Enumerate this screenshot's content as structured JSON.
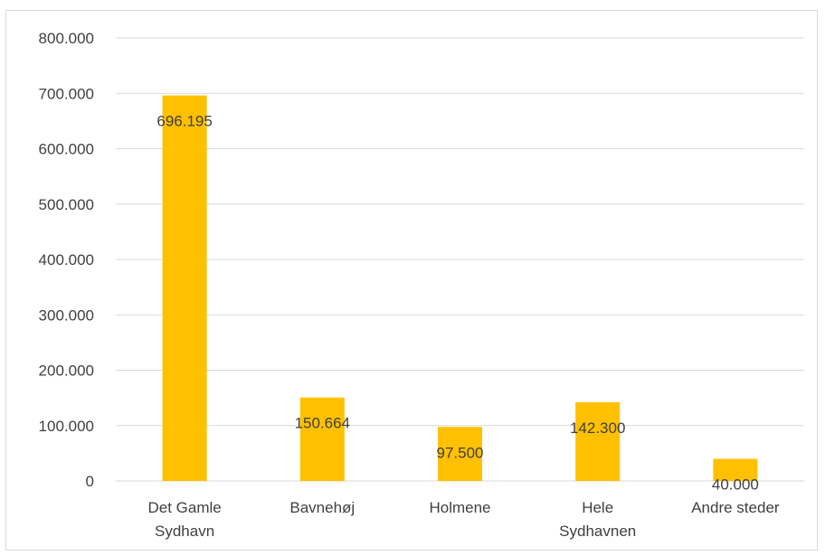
{
  "chart_data": {
    "type": "bar",
    "categories": [
      [
        "Det Gamle",
        "Sydhavn"
      ],
      [
        "Bavnehøj"
      ],
      [
        "Holmene"
      ],
      [
        "Hele",
        "Sydhavnen"
      ],
      [
        "Andre steder"
      ]
    ],
    "values": [
      696195,
      150664,
      97500,
      142300,
      40000
    ],
    "data_labels": [
      "696.195",
      "150.664",
      "97.500",
      "142.300",
      "40.000"
    ],
    "y_ticks": [
      0,
      100000,
      200000,
      300000,
      400000,
      500000,
      600000,
      700000,
      800000
    ],
    "y_tick_labels": [
      "0",
      "100.000",
      "200.000",
      "300.000",
      "400.000",
      "500.000",
      "600.000",
      "700.000",
      "800.000"
    ],
    "ylim": [
      0,
      800000
    ],
    "grid": true,
    "bar_color": "#FFC000",
    "title": "",
    "xlabel": "",
    "ylabel": ""
  }
}
